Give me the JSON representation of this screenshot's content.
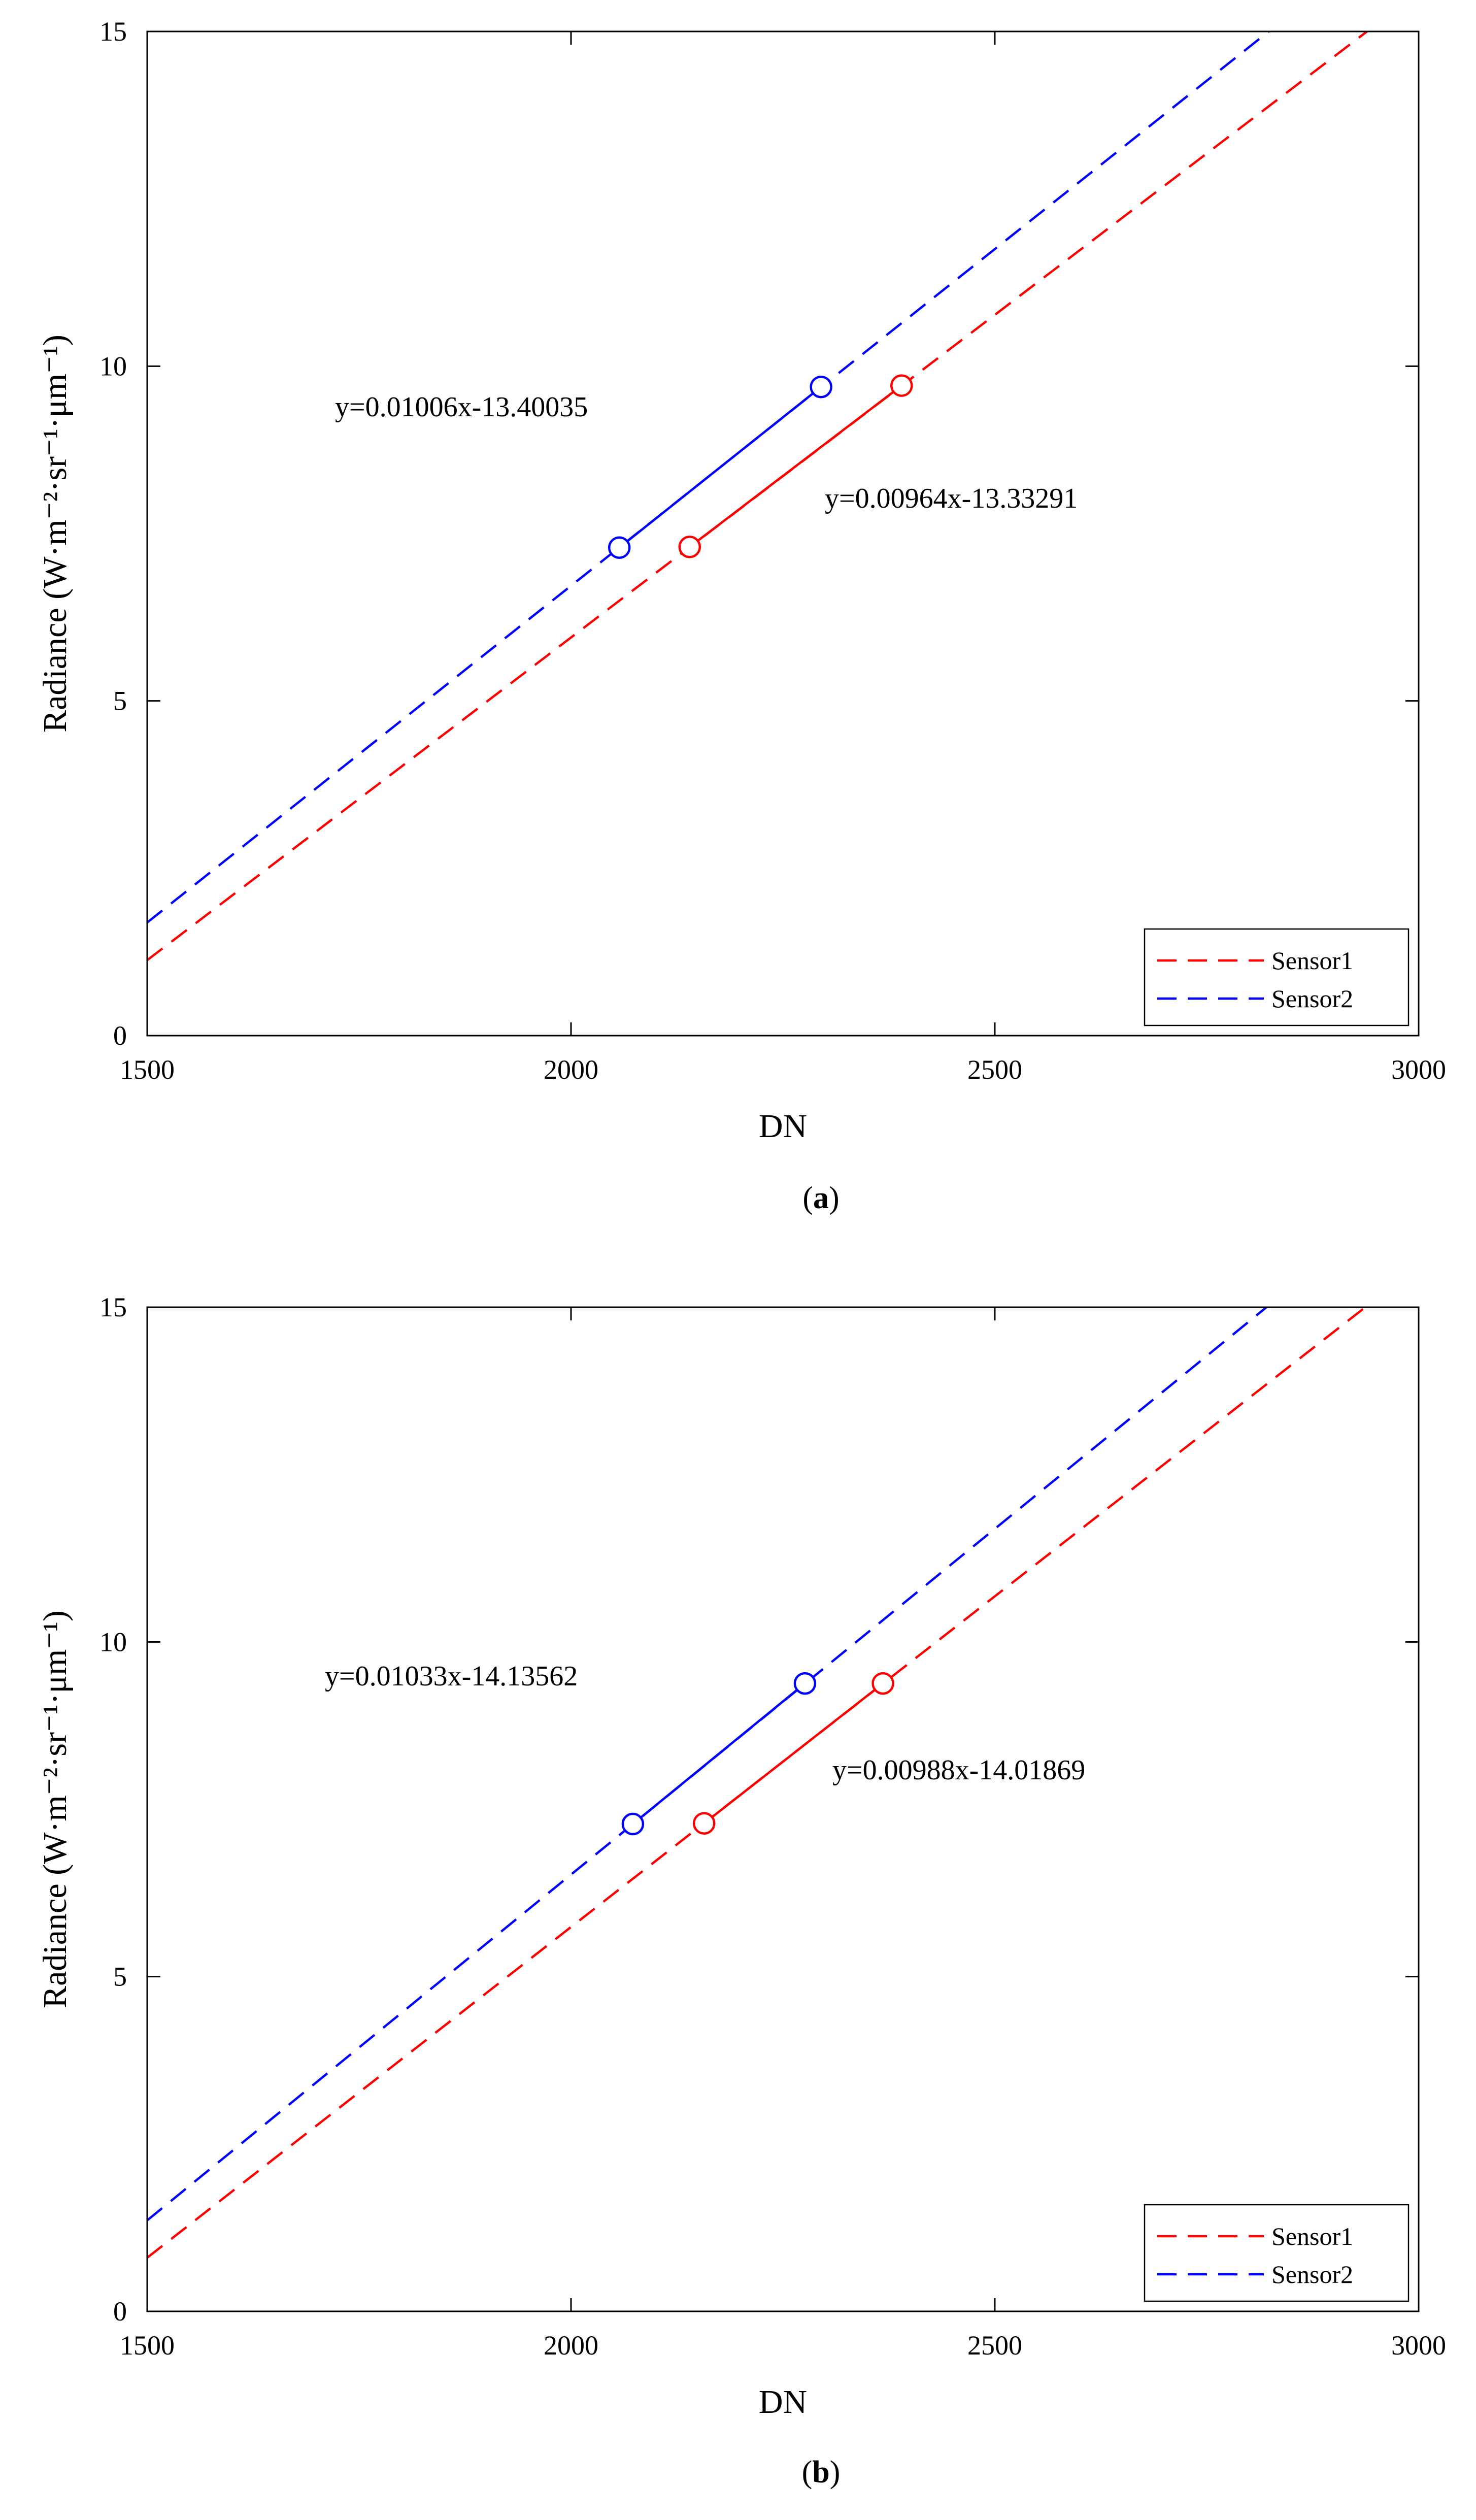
{
  "chart_data": [
    {
      "type": "line",
      "caption_open": "(",
      "caption_letter": "a",
      "caption_close": ")",
      "xlabel": "DN",
      "ylabel": "Radiance (W·m⁻²·sr⁻¹·μm⁻¹)",
      "xlim": [
        1500,
        3000
      ],
      "ylim": [
        0,
        15
      ],
      "xticks": [
        1500,
        2000,
        2500,
        3000
      ],
      "yticks": [
        0,
        5,
        10,
        15
      ],
      "grid": false,
      "legend_position": "bottom-right",
      "series": [
        {
          "name": "Sensor1",
          "color": "#ff0000",
          "slope": 0.00964,
          "intercept": -13.33291,
          "equation": "y=0.00964x-13.33291",
          "points": [
            [
              2140,
              7.3
            ],
            [
              2390,
              9.71
            ]
          ]
        },
        {
          "name": "Sensor2",
          "color": "#0000ff",
          "slope": 0.01006,
          "intercept": -13.40035,
          "equation": "y=0.01006x-13.40035",
          "points": [
            [
              2057,
              7.29
            ],
            [
              2295,
              9.69
            ]
          ]
        }
      ]
    },
    {
      "type": "line",
      "caption_open": "(",
      "caption_letter": "b",
      "caption_close": ")",
      "xlabel": "DN",
      "ylabel": "Radiance (W·m⁻²·sr⁻¹·μm⁻¹)",
      "xlim": [
        1500,
        3000
      ],
      "ylim": [
        0,
        15
      ],
      "xticks": [
        1500,
        2000,
        2500,
        3000
      ],
      "yticks": [
        0,
        5,
        10,
        15
      ],
      "grid": false,
      "legend_position": "bottom-right",
      "series": [
        {
          "name": "Sensor1",
          "color": "#ff0000",
          "slope": 0.00988,
          "intercept": -14.01869,
          "equation": "y=0.00988x-14.01869",
          "points": [
            [
              2157,
              7.29
            ],
            [
              2368,
              9.38
            ]
          ]
        },
        {
          "name": "Sensor2",
          "color": "#0000ff",
          "slope": 0.01033,
          "intercept": -14.13562,
          "equation": "y=0.01033x-14.13562",
          "points": [
            [
              2073,
              7.28
            ],
            [
              2276,
              9.38
            ]
          ]
        }
      ]
    }
  ]
}
